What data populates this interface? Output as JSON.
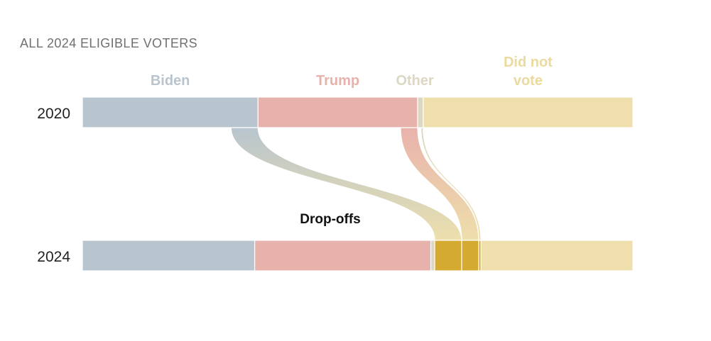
{
  "chart_data": {
    "type": "flow",
    "subtitle": "ALL 2024 ELIGIBLE VOTERS",
    "years": [
      "2020",
      "2024"
    ],
    "categories": [
      {
        "key": "biden",
        "label_lines": [
          "Biden"
        ],
        "color": "#B8C5CE"
      },
      {
        "key": "trump",
        "label_lines": [
          "Trump"
        ],
        "color": "#E8B2AC"
      },
      {
        "key": "other",
        "label_lines": [
          "Other"
        ],
        "color": "#DCD7C2"
      },
      {
        "key": "did_not_vote",
        "label_lines": [
          "Did not",
          "vote"
        ],
        "color": "#EEDFAC"
      }
    ],
    "bars": [
      {
        "year": "2020",
        "segments": [
          {
            "key": "biden",
            "value": 31.9
          },
          {
            "key": "trump",
            "value": 29.0
          },
          {
            "key": "other",
            "value": 1.0
          },
          {
            "key": "did_not_vote",
            "value": 38.1
          }
        ]
      },
      {
        "year": "2024",
        "segments": [
          {
            "key": "biden",
            "value": 31.3
          },
          {
            "key": "trump",
            "value": 32.0
          },
          {
            "key": "other",
            "value": 0.7
          },
          {
            "key": "dropoff_biden",
            "value": 4.9,
            "color": "#D4AA31"
          },
          {
            "key": "dropoff_trump",
            "value": 3.1,
            "color": "#D4AA31"
          },
          {
            "key": "dropoff_other",
            "value": 0.4,
            "color": "#D4AA31"
          },
          {
            "key": "did_not_vote",
            "value": 27.6
          }
        ]
      }
    ],
    "flows": [
      {
        "from": "biden",
        "to": "dropoff_biden",
        "value": 4.9,
        "color_start": "#B8C5CE",
        "color_end": "#EEDFAC"
      },
      {
        "from": "trump",
        "to": "dropoff_trump",
        "value": 3.1,
        "color_start": "#E8B2AC",
        "color_end": "#EEDFAC"
      },
      {
        "from": "other",
        "to": "dropoff_other",
        "value": 0.4,
        "color_start": "#DCD7C2",
        "color_end": "#EEDFAC"
      }
    ],
    "annotation": "Drop-offs",
    "scale_max": 100
  }
}
